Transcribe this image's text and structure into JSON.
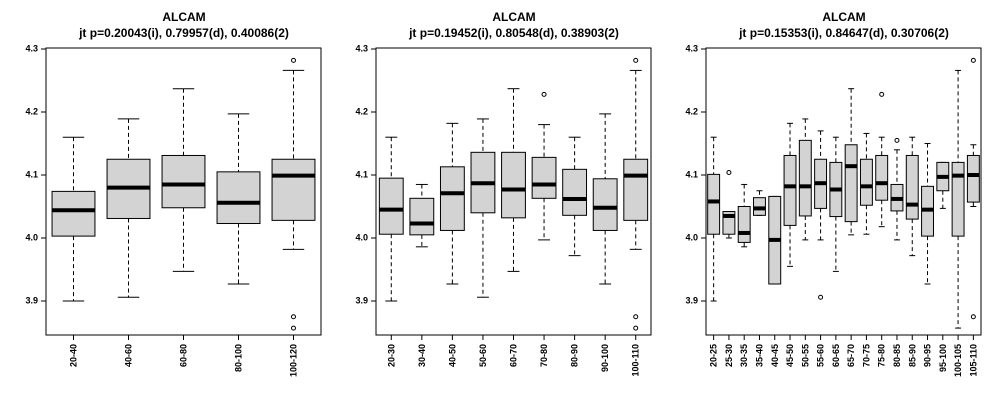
{
  "chart_data": [
    {
      "type": "box",
      "title": "ALCAM",
      "subtitle": "jt p=0.20043(i), 0.79957(d), 0.40086(2)",
      "xlabel": "",
      "ylabel": "",
      "ylim": [
        3.83,
        4.3
      ],
      "yticks": [
        "3.9",
        "4.0",
        "4.1",
        "4.2",
        "4.3"
      ],
      "box_color": "#d3d3d3",
      "categories": [
        "20-40",
        "40-60",
        "60-80",
        "80-100",
        "100-120"
      ],
      "boxes": [
        {
          "min": 3.9,
          "q1": 4.003,
          "median": 4.044,
          "q3": 4.074,
          "max": 4.16,
          "outliers": []
        },
        {
          "min": 3.906,
          "q1": 4.031,
          "median": 4.08,
          "q3": 4.125,
          "max": 4.189,
          "outliers": []
        },
        {
          "min": 3.947,
          "q1": 4.048,
          "median": 4.085,
          "q3": 4.131,
          "max": 4.237,
          "outliers": []
        },
        {
          "min": 3.927,
          "q1": 4.023,
          "median": 4.056,
          "q3": 4.105,
          "max": 4.197,
          "outliers": []
        },
        {
          "min": 3.982,
          "q1": 4.028,
          "median": 4.099,
          "q3": 4.125,
          "max": 4.266,
          "outliers": [
            4.282,
            3.875,
            3.857
          ]
        }
      ]
    },
    {
      "type": "box",
      "title": "ALCAM",
      "subtitle": "jt p=0.19452(i), 0.80548(d), 0.38903(2)",
      "xlabel": "",
      "ylabel": "",
      "ylim": [
        3.83,
        4.3
      ],
      "yticks": [
        "3.9",
        "4.0",
        "4.1",
        "4.2",
        "4.3"
      ],
      "box_color": "#d3d3d3",
      "categories": [
        "20-30",
        "30-40",
        "40-50",
        "50-60",
        "60-70",
        "70-80",
        "80-90",
        "90-100",
        "100-110"
      ],
      "boxes": [
        {
          "min": 3.9,
          "q1": 4.006,
          "median": 4.045,
          "q3": 4.095,
          "max": 4.16,
          "outliers": []
        },
        {
          "min": 3.986,
          "q1": 4.005,
          "median": 4.023,
          "q3": 4.063,
          "max": 4.085,
          "outliers": []
        },
        {
          "min": 3.927,
          "q1": 4.012,
          "median": 4.071,
          "q3": 4.113,
          "max": 4.182,
          "outliers": []
        },
        {
          "min": 3.906,
          "q1": 4.04,
          "median": 4.087,
          "q3": 4.136,
          "max": 4.189,
          "outliers": []
        },
        {
          "min": 3.947,
          "q1": 4.032,
          "median": 4.077,
          "q3": 4.136,
          "max": 4.237,
          "outliers": []
        },
        {
          "min": 3.997,
          "q1": 4.063,
          "median": 4.085,
          "q3": 4.128,
          "max": 4.18,
          "outliers": [
            4.228
          ]
        },
        {
          "min": 3.972,
          "q1": 4.036,
          "median": 4.062,
          "q3": 4.109,
          "max": 4.16,
          "outliers": []
        },
        {
          "min": 3.927,
          "q1": 4.012,
          "median": 4.048,
          "q3": 4.094,
          "max": 4.197,
          "outliers": []
        },
        {
          "min": 3.982,
          "q1": 4.028,
          "median": 4.099,
          "q3": 4.125,
          "max": 4.266,
          "outliers": [
            4.282,
            3.875,
            3.857
          ]
        }
      ]
    },
    {
      "type": "box",
      "title": "ALCAM",
      "subtitle": "jt p=0.15353(i), 0.84647(d), 0.30706(2)",
      "xlabel": "",
      "ylabel": "",
      "ylim": [
        3.83,
        4.3
      ],
      "yticks": [
        "3.9",
        "4.0",
        "4.1",
        "4.2",
        "4.3"
      ],
      "box_color": "#d3d3d3",
      "categories": [
        "20-25",
        "25-30",
        "30-35",
        "35-40",
        "40-45",
        "45-50",
        "50-55",
        "55-60",
        "60-65",
        "65-70",
        "70-75",
        "75-80",
        "80-85",
        "85-90",
        "90-95",
        "95-100",
        "100-105",
        "105-110"
      ],
      "boxes": [
        {
          "min": 3.9,
          "q1": 4.006,
          "median": 4.058,
          "q3": 4.101,
          "max": 4.16,
          "outliers": []
        },
        {
          "min": 4.0,
          "q1": 4.006,
          "median": 4.035,
          "q3": 4.042,
          "max": 4.042,
          "outliers": [
            4.104
          ]
        },
        {
          "min": 3.986,
          "q1": 3.993,
          "median": 4.008,
          "q3": 4.05,
          "max": 4.085,
          "outliers": []
        },
        {
          "min": 4.036,
          "q1": 4.036,
          "median": 4.047,
          "q3": 4.064,
          "max": 4.075,
          "outliers": []
        },
        {
          "min": 3.927,
          "q1": 3.927,
          "median": 3.997,
          "q3": 4.066,
          "max": 4.066,
          "outliers": []
        },
        {
          "min": 3.955,
          "q1": 4.02,
          "median": 4.082,
          "q3": 4.131,
          "max": 4.182,
          "outliers": []
        },
        {
          "min": 3.997,
          "q1": 4.035,
          "median": 4.082,
          "q3": 4.155,
          "max": 4.189,
          "outliers": []
        },
        {
          "min": 3.997,
          "q1": 4.047,
          "median": 4.087,
          "q3": 4.125,
          "max": 4.17,
          "outliers": [
            3.906
          ]
        },
        {
          "min": 3.947,
          "q1": 4.034,
          "median": 4.077,
          "q3": 4.12,
          "max": 4.16,
          "outliers": []
        },
        {
          "min": 4.005,
          "q1": 4.026,
          "median": 4.114,
          "q3": 4.148,
          "max": 4.237,
          "outliers": []
        },
        {
          "min": 4.006,
          "q1": 4.052,
          "median": 4.082,
          "q3": 4.125,
          "max": 4.166,
          "outliers": []
        },
        {
          "min": 4.018,
          "q1": 4.06,
          "median": 4.087,
          "q3": 4.131,
          "max": 4.16,
          "outliers": [
            4.228
          ]
        },
        {
          "min": 3.997,
          "q1": 4.043,
          "median": 4.062,
          "q3": 4.085,
          "max": 4.14,
          "outliers": [
            4.155
          ]
        },
        {
          "min": 3.972,
          "q1": 4.03,
          "median": 4.053,
          "q3": 4.131,
          "max": 4.16,
          "outliers": []
        },
        {
          "min": 3.927,
          "q1": 4.003,
          "median": 4.045,
          "q3": 4.082,
          "max": 4.15,
          "outliers": []
        },
        {
          "min": 4.047,
          "q1": 4.075,
          "median": 4.097,
          "q3": 4.12,
          "max": 4.12,
          "outliers": []
        },
        {
          "min": 3.857,
          "q1": 4.003,
          "median": 4.099,
          "q3": 4.12,
          "max": 4.266,
          "outliers": []
        },
        {
          "min": 4.05,
          "q1": 4.057,
          "median": 4.1,
          "q3": 4.131,
          "max": 4.148,
          "outliers": [
            4.282,
            3.875
          ]
        }
      ]
    }
  ]
}
